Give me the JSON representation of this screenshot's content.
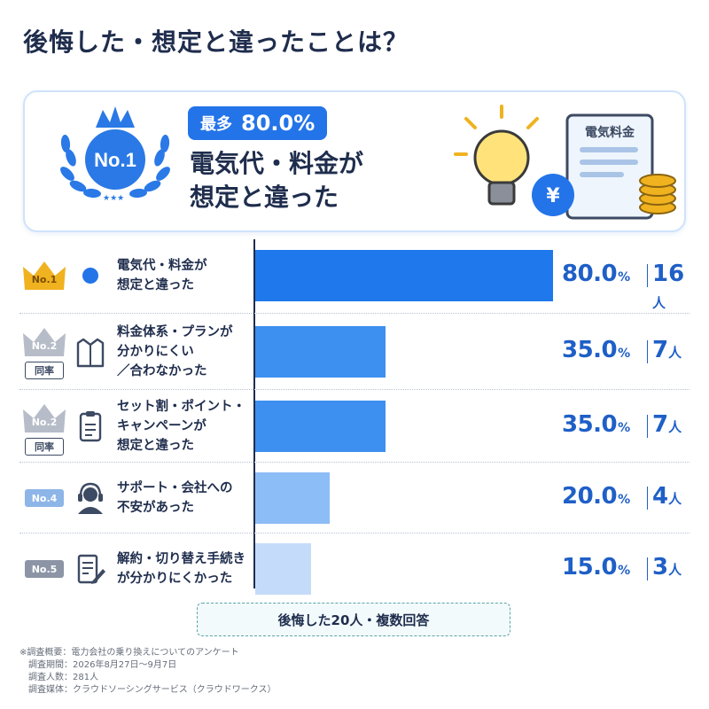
{
  "title": "後悔した・想定と違ったことは？",
  "hero": {
    "badge_label": "No.1",
    "pill_label": "最多",
    "pill_value": "80.0%",
    "main_line1": "電気代・料金が",
    "main_line2": "想定と違った",
    "document_label": "電気料金",
    "yen_symbol": "¥"
  },
  "rows": [
    {
      "rank": "No.1",
      "tie": "",
      "icon": "blue-dot-icon",
      "label_lines": [
        "電気代・料金が",
        "想定と違った"
      ],
      "pct": "80.0",
      "count": "16"
    },
    {
      "rank": "No.2",
      "tie": "同率",
      "icon": "shirt-icon",
      "label_lines": [
        "料金体系・プランが",
        "分かりにくい",
        "／合わなかった"
      ],
      "pct": "35.0",
      "count": "7"
    },
    {
      "rank": "No.2",
      "tie": "同率",
      "icon": "clipboard-icon",
      "label_lines": [
        "セット割・ポイント・",
        "キャンペーンが",
        "想定と違った"
      ],
      "pct": "35.0",
      "count": "7"
    },
    {
      "rank": "No.4",
      "tie": "",
      "icon": "support-headset-icon",
      "label_lines": [
        "サポート・会社への",
        "不安があった"
      ],
      "pct": "20.0",
      "count": "4"
    },
    {
      "rank": "No.5",
      "tie": "",
      "icon": "document-edit-icon",
      "label_lines": [
        "解約・切り替え手続き",
        "が分かりにくかった"
      ],
      "pct": "15.0",
      "count": "3"
    }
  ],
  "pct_unit": "%",
  "count_unit": "人",
  "footer": "後悔した20人・複数回答",
  "notes": [
    "※調査概要：電力会社の乗り換えについてのアンケート",
    "　調査期間：2026年8月27日〜9月7日",
    "　調査人数：281人",
    "　調査媒体：クラウドソーシングサービス（クラウドワークス）"
  ],
  "colors": {
    "accent": "#2374e8",
    "bar_colors": [
      "#1f78ec",
      "#3d8ff0",
      "#3d8ff0",
      "#8cbdf6",
      "#c4dcfa"
    ],
    "text": "#1f2d4d",
    "value": "#1f5fc7",
    "gold": "#f0b21f"
  },
  "chart_data": {
    "type": "bar",
    "orientation": "horizontal",
    "categories": [
      "電気代・料金が想定と違った",
      "料金体系・プランが分かりにくい／合わなかった",
      "セット割・ポイント・キャンペーンが想定と違った",
      "サポート・会社への不安があった",
      "解約・切り替え手続きが分かりにくかった"
    ],
    "values": [
      80.0,
      35.0,
      35.0,
      20.0,
      15.0
    ],
    "counts": [
      16,
      7,
      7,
      4,
      3
    ],
    "xlim": [
      0,
      100
    ],
    "grid": false
  }
}
